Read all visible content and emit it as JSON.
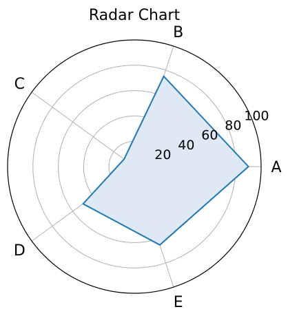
{
  "chart_data": {
    "type": "radar",
    "title": "Radar Chart",
    "categories": [
      "A",
      "B",
      "C",
      "D",
      "E"
    ],
    "series": [
      {
        "values": [
          90,
          75,
          10,
          50,
          65
        ],
        "color": "#1f77b4",
        "fill": "#dfe9f5"
      }
    ],
    "rlim": [
      0,
      100
    ],
    "rticks": [
      20,
      40,
      60,
      80,
      100
    ],
    "rtick_labels": [
      "20",
      "40",
      "60",
      "80",
      "100"
    ],
    "grid": true,
    "grid_color": "#b0b0b0"
  }
}
